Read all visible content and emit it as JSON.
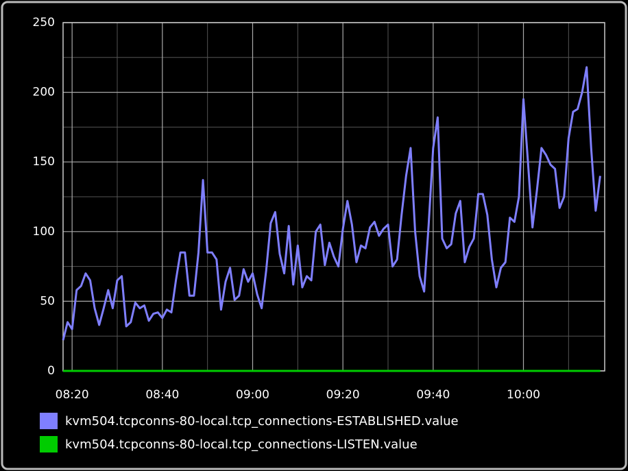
{
  "chart_data": {
    "type": "line",
    "x": [
      "08:18",
      "08:19",
      "08:20",
      "08:21",
      "08:22",
      "08:23",
      "08:24",
      "08:25",
      "08:26",
      "08:27",
      "08:28",
      "08:29",
      "08:30",
      "08:31",
      "08:32",
      "08:33",
      "08:34",
      "08:35",
      "08:36",
      "08:37",
      "08:38",
      "08:39",
      "08:40",
      "08:41",
      "08:42",
      "08:43",
      "08:44",
      "08:45",
      "08:46",
      "08:47",
      "08:48",
      "08:49",
      "08:50",
      "08:51",
      "08:52",
      "08:53",
      "08:54",
      "08:55",
      "08:56",
      "08:57",
      "08:58",
      "08:59",
      "09:00",
      "09:01",
      "09:02",
      "09:03",
      "09:04",
      "09:05",
      "09:06",
      "09:07",
      "09:08",
      "09:09",
      "09:10",
      "09:11",
      "09:12",
      "09:13",
      "09:14",
      "09:15",
      "09:16",
      "09:17",
      "09:18",
      "09:19",
      "09:20",
      "09:21",
      "09:22",
      "09:23",
      "09:24",
      "09:25",
      "09:26",
      "09:27",
      "09:28",
      "09:29",
      "09:30",
      "09:31",
      "09:32",
      "09:33",
      "09:34",
      "09:35",
      "09:36",
      "09:37",
      "09:38",
      "09:39",
      "09:40",
      "09:41",
      "09:42",
      "09:43",
      "09:44",
      "09:45",
      "09:46",
      "09:47",
      "09:48",
      "09:49",
      "09:50",
      "09:51",
      "09:52",
      "09:53",
      "09:54",
      "09:55",
      "09:56",
      "09:57",
      "09:58",
      "09:59",
      "10:00",
      "10:01",
      "10:02",
      "10:03",
      "10:04",
      "10:05",
      "10:06",
      "10:07",
      "10:08",
      "10:09",
      "10:10",
      "10:11",
      "10:12",
      "10:13",
      "10:14",
      "10:15",
      "10:16",
      "10:17"
    ],
    "series": [
      {
        "name": "kvm504.tcpconns-80-local.tcp_connections-ESTABLISHED.value",
        "color": "#7f7fff",
        "values": [
          22,
          35,
          30,
          58,
          61,
          70,
          65,
          45,
          33,
          45,
          58,
          45,
          65,
          68,
          32,
          35,
          49,
          45,
          47,
          36,
          41,
          42,
          38,
          44,
          42,
          65,
          85,
          85,
          54,
          54,
          85,
          137,
          85,
          85,
          80,
          44,
          64,
          74,
          51,
          54,
          73,
          64,
          70,
          55,
          45,
          72,
          106,
          114,
          84,
          70,
          104,
          62,
          90,
          60,
          68,
          65,
          100,
          105,
          76,
          92,
          82,
          75,
          102,
          122,
          105,
          78,
          90,
          88,
          103,
          107,
          97,
          102,
          105,
          75,
          80,
          112,
          140,
          160,
          100,
          68,
          57,
          105,
          160,
          182,
          95,
          88,
          91,
          113,
          122,
          78,
          89,
          95,
          127,
          127,
          112,
          80,
          60,
          74,
          78,
          110,
          107,
          125,
          195,
          150,
          103,
          130,
          160,
          155,
          148,
          145,
          117,
          125,
          167,
          186,
          188,
          200,
          218,
          160,
          115,
          140
        ]
      },
      {
        "name": "kvm504.tcpconns-80-local.tcp_connections-LISTEN.value",
        "color": "#00cc00",
        "values": [
          0,
          0,
          0,
          0,
          0,
          0,
          0,
          0,
          0,
          0,
          0,
          0,
          0,
          0,
          0,
          0,
          0,
          0,
          0,
          0,
          0,
          0,
          0,
          0,
          0,
          0,
          0,
          0,
          0,
          0,
          0,
          0,
          0,
          0,
          0,
          0,
          0,
          0,
          0,
          0,
          0,
          0,
          0,
          0,
          0,
          0,
          0,
          0,
          0,
          0,
          0,
          0,
          0,
          0,
          0,
          0,
          0,
          0,
          0,
          0,
          0,
          0,
          0,
          0,
          0,
          0,
          0,
          0,
          0,
          0,
          0,
          0,
          0,
          0,
          0,
          0,
          0,
          0,
          0,
          0,
          0,
          0,
          0,
          0,
          0,
          0,
          0,
          0,
          0,
          0,
          0,
          0,
          0,
          0,
          0,
          0,
          0,
          0,
          0,
          0,
          0,
          0,
          0,
          0,
          0,
          0,
          0,
          0,
          0,
          0,
          0,
          0,
          0,
          0,
          0,
          0,
          0,
          0,
          0,
          0
        ]
      }
    ],
    "xlim": [
      "08:18",
      "10:18"
    ],
    "xticks": [
      "08:20",
      "08:40",
      "09:00",
      "09:20",
      "09:40",
      "10:00"
    ],
    "minor_xticks": [
      "08:30",
      "08:50",
      "09:10",
      "09:30",
      "09:50",
      "10:10"
    ],
    "ylim": [
      0,
      250
    ],
    "yticks": [
      0,
      50,
      100,
      150,
      200,
      250
    ],
    "minor_yticks": [
      25,
      75,
      125,
      175,
      225
    ],
    "grid": true
  }
}
